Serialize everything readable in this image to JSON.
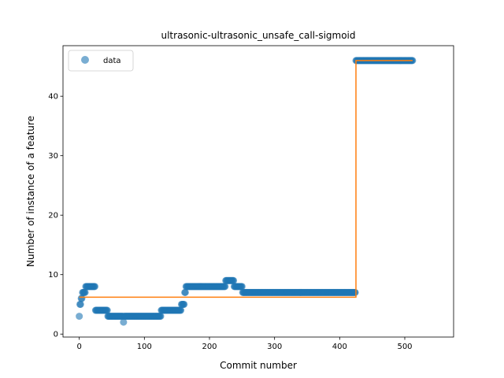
{
  "chart_data": {
    "type": "scatter",
    "title": "ultrasonic-ultrasonic_unsafe_call-sigmoid",
    "xlabel": "Commit number",
    "ylabel": "Number of instance of a feature",
    "xlim": [
      -25,
      575
    ],
    "ylim": [
      -0.5,
      48.5
    ],
    "xticks": [
      0,
      100,
      200,
      300,
      400,
      500
    ],
    "yticks": [
      0,
      10,
      20,
      30,
      40
    ],
    "grid": false,
    "legend": {
      "placement": "top-left",
      "entries": [
        "data"
      ]
    },
    "colors": {
      "points": "#1f77b4",
      "fit": "#ff7f0e"
    },
    "series": [
      {
        "name": "data",
        "kind": "points",
        "segments": [
          {
            "x_start": 0,
            "x_end": 0,
            "y": 3
          },
          {
            "x_start": 1,
            "x_end": 2,
            "y": 5
          },
          {
            "x_start": 3,
            "x_end": 4,
            "y": 6
          },
          {
            "x_start": 5,
            "x_end": 9,
            "y": 7
          },
          {
            "x_start": 10,
            "x_end": 24,
            "y": 8
          },
          {
            "x_start": 25,
            "x_end": 43,
            "y": 4
          },
          {
            "x_start": 44,
            "x_end": 67,
            "y": 3
          },
          {
            "x_start": 68,
            "x_end": 68,
            "y": 2
          },
          {
            "x_start": 69,
            "x_end": 125,
            "y": 3
          },
          {
            "x_start": 126,
            "x_end": 156,
            "y": 4
          },
          {
            "x_start": 157,
            "x_end": 161,
            "y": 5
          },
          {
            "x_start": 162,
            "x_end": 163,
            "y": 7
          },
          {
            "x_start": 164,
            "x_end": 224,
            "y": 8
          },
          {
            "x_start": 225,
            "x_end": 237,
            "y": 9
          },
          {
            "x_start": 238,
            "x_end": 250,
            "y": 8
          },
          {
            "x_start": 251,
            "x_end": 424,
            "y": 7
          },
          {
            "x_start": 425,
            "x_end": 512,
            "y": 46
          }
        ]
      },
      {
        "name": "",
        "kind": "step-line",
        "points": [
          [
            0,
            6.2
          ],
          [
            425,
            6.2
          ],
          [
            425,
            46
          ],
          [
            512,
            46
          ]
        ]
      }
    ]
  }
}
